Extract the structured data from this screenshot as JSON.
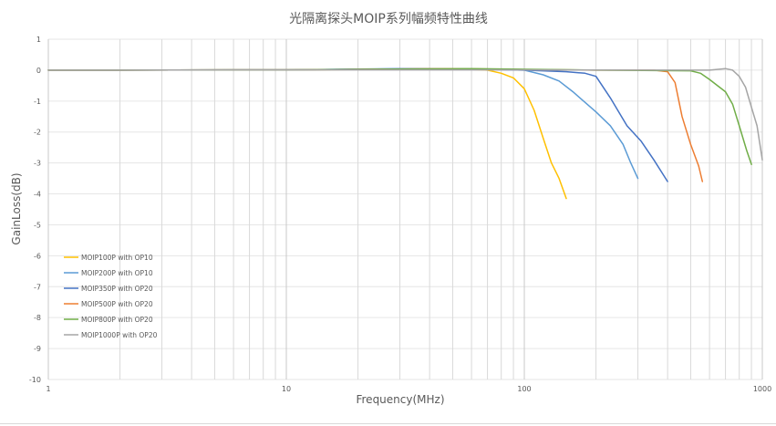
{
  "chart_data": {
    "type": "line",
    "title": "光隔离探头MOIP系列幅频特性曲线",
    "xlabel": "Frequency(MHz)",
    "ylabel": "GainLoss(dB)",
    "x_scale": "log",
    "xlim": [
      1,
      1000
    ],
    "ylim": [
      -10,
      1
    ],
    "x_ticks": [
      1,
      10,
      100,
      1000
    ],
    "x_tick_labels": [
      "1",
      "10",
      "100",
      "1000"
    ],
    "y_ticks": [
      1,
      0,
      -1,
      -2,
      -3,
      -4,
      -5,
      -6,
      -7,
      -8,
      -9,
      -10
    ],
    "y_tick_labels": [
      "1",
      "0",
      "-1",
      "-2",
      "-3",
      "-4",
      "-5",
      "-6",
      "-7",
      "-8",
      "-9",
      "-10"
    ],
    "grid": true,
    "legend_position": "bottom-left",
    "series": [
      {
        "name": "MOIP100P with OP10",
        "color": "#FFC000",
        "points": [
          [
            1,
            0
          ],
          [
            10,
            0.01
          ],
          [
            30,
            0.03
          ],
          [
            50,
            0.05
          ],
          [
            70,
            0.0
          ],
          [
            80,
            -0.1
          ],
          [
            90,
            -0.25
          ],
          [
            100,
            -0.6
          ],
          [
            110,
            -1.3
          ],
          [
            120,
            -2.2
          ],
          [
            130,
            -3.0
          ],
          [
            140,
            -3.5
          ],
          [
            150,
            -4.15
          ]
        ]
      },
      {
        "name": "MOIP200P with OP10",
        "color": "#5B9BD5",
        "points": [
          [
            1,
            0
          ],
          [
            10,
            0.01
          ],
          [
            30,
            0.05
          ],
          [
            50,
            0.05
          ],
          [
            70,
            0.02
          ],
          [
            100,
            0.0
          ],
          [
            120,
            -0.15
          ],
          [
            140,
            -0.35
          ],
          [
            160,
            -0.7
          ],
          [
            200,
            -1.35
          ],
          [
            230,
            -1.8
          ],
          [
            260,
            -2.4
          ],
          [
            280,
            -3.0
          ],
          [
            300,
            -3.5
          ]
        ]
      },
      {
        "name": "MOIP350P with OP20",
        "color": "#4472C4",
        "points": [
          [
            1,
            0
          ],
          [
            10,
            0.01
          ],
          [
            40,
            0.05
          ],
          [
            60,
            0.03
          ],
          [
            100,
            0.0
          ],
          [
            150,
            -0.05
          ],
          [
            180,
            -0.1
          ],
          [
            200,
            -0.2
          ],
          [
            230,
            -0.9
          ],
          [
            270,
            -1.8
          ],
          [
            310,
            -2.3
          ],
          [
            350,
            -2.9
          ],
          [
            400,
            -3.6
          ]
        ]
      },
      {
        "name": "MOIP500P with OP20",
        "color": "#ED7D31",
        "points": [
          [
            1,
            0
          ],
          [
            10,
            0.01
          ],
          [
            50,
            0.05
          ],
          [
            100,
            0.02
          ],
          [
            200,
            0.0
          ],
          [
            350,
            0.0
          ],
          [
            400,
            -0.05
          ],
          [
            430,
            -0.4
          ],
          [
            460,
            -1.5
          ],
          [
            500,
            -2.4
          ],
          [
            540,
            -3.1
          ],
          [
            560,
            -3.6
          ]
        ]
      },
      {
        "name": "MOIP800P with OP20",
        "color": "#70AD47",
        "points": [
          [
            1,
            0
          ],
          [
            10,
            0.01
          ],
          [
            60,
            0.05
          ],
          [
            200,
            0.0
          ],
          [
            500,
            -0.02
          ],
          [
            550,
            -0.1
          ],
          [
            600,
            -0.3
          ],
          [
            700,
            -0.7
          ],
          [
            750,
            -1.1
          ],
          [
            800,
            -1.8
          ],
          [
            860,
            -2.6
          ],
          [
            900,
            -3.05
          ]
        ]
      },
      {
        "name": "MOIP1000P with OP20",
        "color": "#A5A5A5",
        "points": [
          [
            1,
            0
          ],
          [
            10,
            0.01
          ],
          [
            100,
            0.01
          ],
          [
            500,
            0.0
          ],
          [
            600,
            0.0
          ],
          [
            700,
            0.05
          ],
          [
            750,
            0.0
          ],
          [
            800,
            -0.2
          ],
          [
            850,
            -0.55
          ],
          [
            900,
            -1.2
          ],
          [
            950,
            -1.8
          ],
          [
            1000,
            -2.9
          ]
        ]
      }
    ]
  }
}
